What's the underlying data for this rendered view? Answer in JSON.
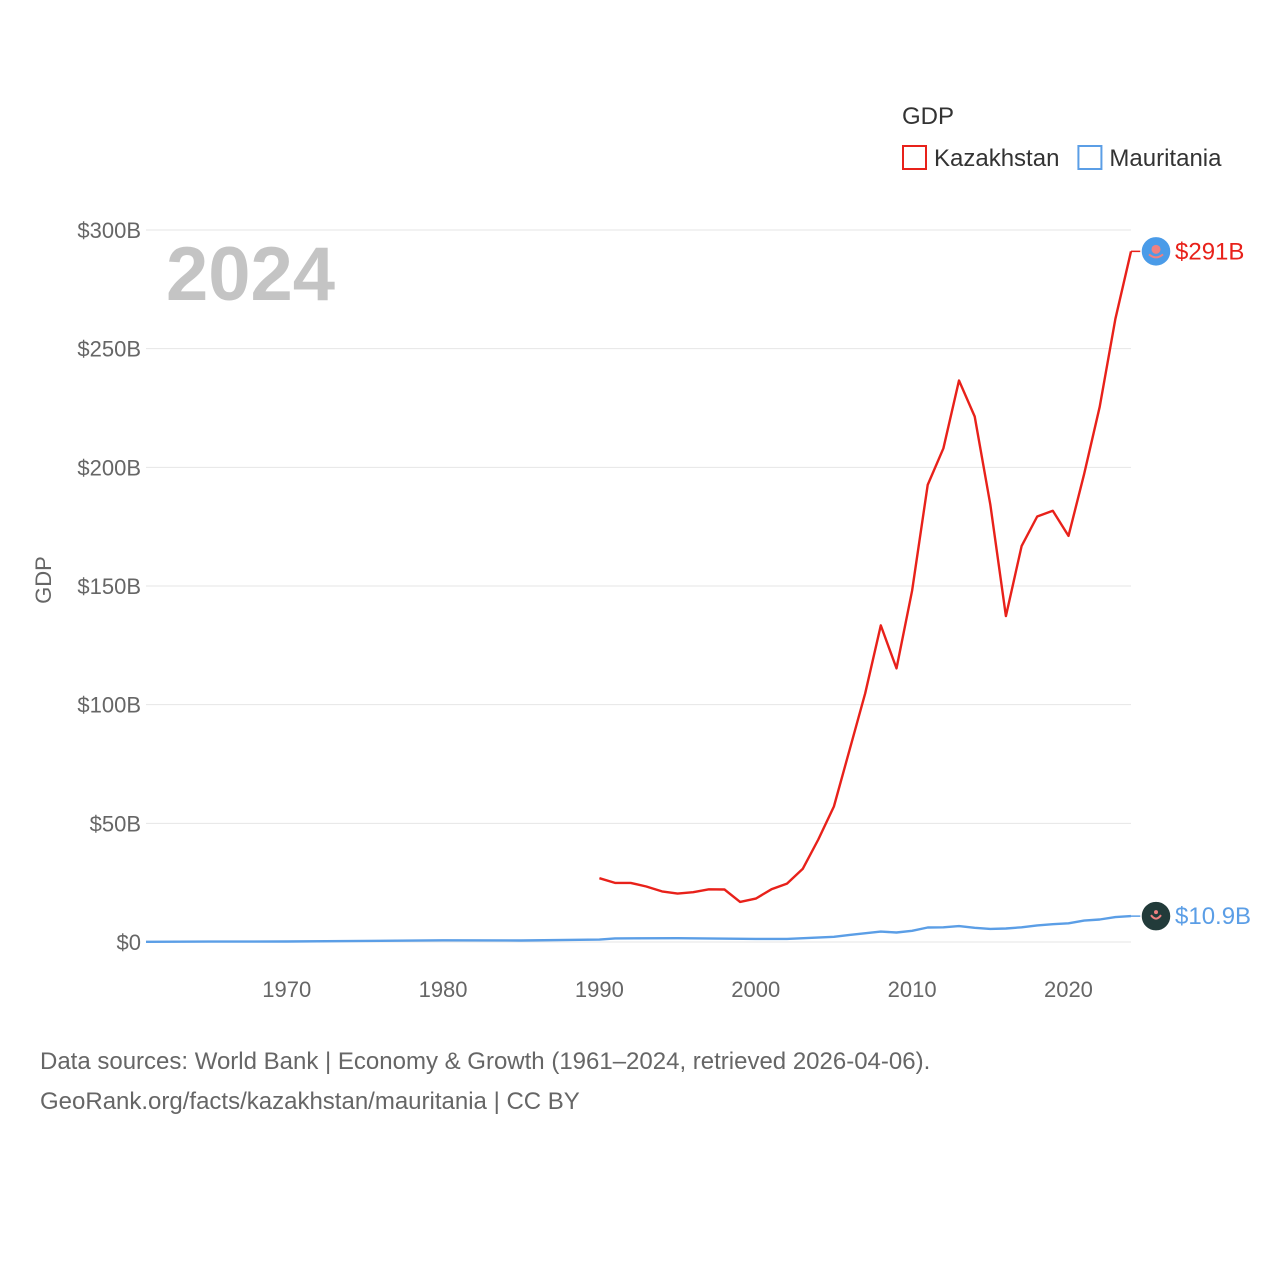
{
  "chart_data": {
    "type": "line",
    "year_overlay": "2024",
    "ylabel": "GDP",
    "legend": {
      "title": "GDP",
      "position": "top-right"
    },
    "ylim": [
      0,
      300
    ],
    "y_ticks": [
      {
        "value": 0,
        "label": "$0"
      },
      {
        "value": 50,
        "label": "$50B"
      },
      {
        "value": 100,
        "label": "$100B"
      },
      {
        "value": 150,
        "label": "$150B"
      },
      {
        "value": 200,
        "label": "$200B"
      },
      {
        "value": 250,
        "label": "$250B"
      },
      {
        "value": 300,
        "label": "$300B"
      }
    ],
    "xlim": [
      1961,
      2024
    ],
    "x_ticks": [
      {
        "value": 1970,
        "label": "1970"
      },
      {
        "value": 1980,
        "label": "1980"
      },
      {
        "value": 1990,
        "label": "1990"
      },
      {
        "value": 2000,
        "label": "2000"
      },
      {
        "value": 2010,
        "label": "2010"
      },
      {
        "value": 2020,
        "label": "2020"
      }
    ],
    "series": [
      {
        "name": "Kazakhstan",
        "color": "#e8211a",
        "end_label": "$291B",
        "flag_icon": "kazakhstan-flag-icon",
        "flag_color": "#4a9be8",
        "x": [
          1990,
          1991,
          1992,
          1993,
          1994,
          1995,
          1996,
          1997,
          1998,
          1999,
          2000,
          2001,
          2002,
          2003,
          2004,
          2005,
          2006,
          2007,
          2008,
          2009,
          2010,
          2011,
          2012,
          2013,
          2014,
          2015,
          2016,
          2017,
          2018,
          2019,
          2020,
          2021,
          2022,
          2023,
          2024
        ],
        "values": [
          26.9,
          24.9,
          24.9,
          23.4,
          21.3,
          20.4,
          21.0,
          22.2,
          22.1,
          16.9,
          18.3,
          22.2,
          24.6,
          30.8,
          43.2,
          57.1,
          81.0,
          104.8,
          133.4,
          115.3,
          148.0,
          192.6,
          208.0,
          236.6,
          221.4,
          184.4,
          137.3,
          166.8,
          179.3,
          181.7,
          171.1,
          197.1,
          225.5,
          262.6,
          291.0
        ]
      },
      {
        "name": "Mauritania",
        "color": "#5b9ee6",
        "end_label": "$10.9B",
        "flag_icon": "mauritania-flag-icon",
        "flag_color": "#223b3a",
        "x": [
          1961,
          1965,
          1970,
          1975,
          1980,
          1985,
          1990,
          1991,
          1995,
          2000,
          2002,
          2005,
          2006,
          2008,
          2009,
          2010,
          2011,
          2012,
          2013,
          2014,
          2015,
          2016,
          2017,
          2018,
          2019,
          2020,
          2021,
          2022,
          2023,
          2024
        ],
        "values": [
          0.1,
          0.15,
          0.2,
          0.45,
          0.7,
          0.65,
          1.0,
          1.5,
          1.6,
          1.3,
          1.3,
          2.2,
          3.0,
          4.4,
          4.0,
          4.7,
          6.1,
          6.2,
          6.7,
          6.0,
          5.5,
          5.7,
          6.2,
          7.0,
          7.5,
          7.9,
          9.0,
          9.5,
          10.5,
          10.9
        ]
      }
    ]
  },
  "footer": {
    "line1": "Data sources: World Bank | Economy & Growth (1961–2024, retrieved 2026-04-06).",
    "line2": "GeoRank.org/facts/kazakhstan/mauritania | CC BY"
  }
}
